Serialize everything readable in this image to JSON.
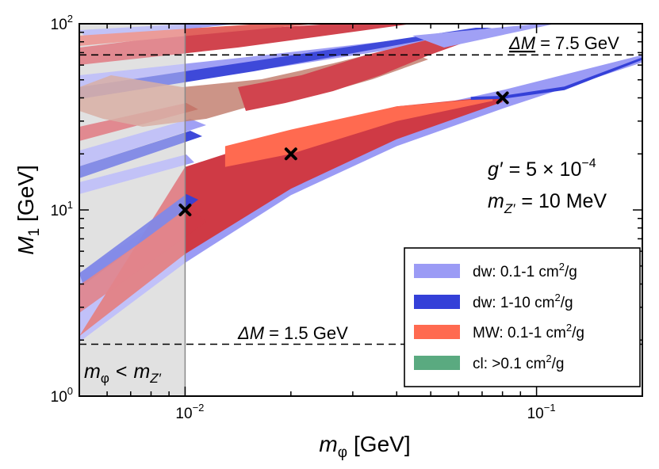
{
  "chart_data": {
    "type": "area",
    "x_scale": "log",
    "y_scale": "log",
    "xlim": [
      0.005,
      0.2
    ],
    "ylim": [
      1,
      100
    ],
    "xlabel": {
      "sym": "m",
      "sub": "φ",
      "unit": "[GeV]"
    },
    "ylabel": {
      "sym": "M",
      "sub": "1",
      "unit": "[GeV]"
    },
    "x_ticks": [
      {
        "value": 0.01,
        "base": "10",
        "exp": "−2"
      },
      {
        "value": 0.1,
        "base": "10",
        "exp": "−1"
      }
    ],
    "y_ticks": [
      {
        "value": 1,
        "base": "10",
        "exp": "0"
      },
      {
        "value": 10,
        "base": "10",
        "exp": "1"
      },
      {
        "value": 100,
        "base": "10",
        "exp": "2"
      }
    ],
    "excluded_region": {
      "x_max": 0.01,
      "label_left": "m",
      "label_left_sub": "φ",
      "label_op": "<",
      "label_right": "m",
      "label_right_sub": "Z′"
    },
    "hlines": [
      {
        "y": 68,
        "label_pre": "ΔM",
        "label_post": "= 7.5 GeV"
      },
      {
        "y": 1.9,
        "label_pre": "ΔM",
        "label_post": "= 1.5 GeV"
      }
    ],
    "markers": [
      {
        "x": 0.01,
        "y": 10
      },
      {
        "x": 0.02,
        "y": 20
      },
      {
        "x": 0.08,
        "y": 40
      }
    ],
    "params": [
      {
        "sym": "g′",
        "eq": "= 5 × 10",
        "exp": "−4",
        "unit": ""
      },
      {
        "sym": "m",
        "sub": "Z′",
        "eq": "= 10 MeV",
        "exp": "",
        "unit": ""
      }
    ],
    "legend": [
      {
        "label": "dw: 0.1-1 cm",
        "sup": "2",
        "tail": "/g",
        "color": "#9b9bf5"
      },
      {
        "label": "dw: 1-10 cm",
        "sup": "2",
        "tail": "/g",
        "color": "#3440d8"
      },
      {
        "label": "MW: 0.1-1 cm",
        "sup": "2",
        "tail": "/g",
        "color": "#ff6a50"
      },
      {
        "label": "cl: >0.1 cm",
        "sup": "2",
        "tail": "/g",
        "color": "#5aaa80"
      }
    ],
    "series": [
      {
        "name": "dw: 0.1-1 cm2/g (main band)",
        "color": "#9b9bf5",
        "upper": [
          [
            0.005,
            4.6
          ],
          [
            0.01,
            10.6
          ],
          [
            0.02,
            21.5
          ],
          [
            0.04,
            33
          ],
          [
            0.08,
            44
          ],
          [
            0.2,
            68
          ]
        ],
        "lower": [
          [
            0.005,
            1.95
          ],
          [
            0.01,
            5.2
          ],
          [
            0.02,
            12
          ],
          [
            0.04,
            22
          ],
          [
            0.08,
            35
          ],
          [
            0.2,
            62
          ]
        ]
      },
      {
        "name": "MW: 0.1-1 cm2/g (dark)",
        "color": "#cf3a45",
        "upper": [
          [
            0.01,
            17
          ],
          [
            0.02,
            26
          ],
          [
            0.04,
            36
          ],
          [
            0.08,
            41
          ]
        ],
        "lower": [
          [
            0.005,
            2.1
          ],
          [
            0.01,
            5.8
          ],
          [
            0.02,
            13
          ],
          [
            0.04,
            24
          ],
          [
            0.08,
            38
          ]
        ]
      },
      {
        "name": "MW: 0.1-1 cm2/g (bright)",
        "color": "#ff6a50",
        "upper": [
          [
            0.013,
            22
          ],
          [
            0.02,
            27
          ],
          [
            0.04,
            36
          ],
          [
            0.075,
            40
          ]
        ],
        "lower": [
          [
            0.013,
            17
          ],
          [
            0.02,
            20
          ],
          [
            0.04,
            30
          ],
          [
            0.075,
            38.5
          ]
        ]
      },
      {
        "name": "dw: 1-10 cm2/g (core)",
        "color": "#3440d8",
        "upper": [
          [
            0.065,
            40.5
          ],
          [
            0.08,
            41
          ],
          [
            0.12,
            46
          ],
          [
            0.2,
            66
          ]
        ],
        "lower": [
          [
            0.065,
            39
          ],
          [
            0.08,
            39.5
          ],
          [
            0.12,
            44
          ],
          [
            0.2,
            64
          ]
        ]
      }
    ],
    "title": ""
  }
}
